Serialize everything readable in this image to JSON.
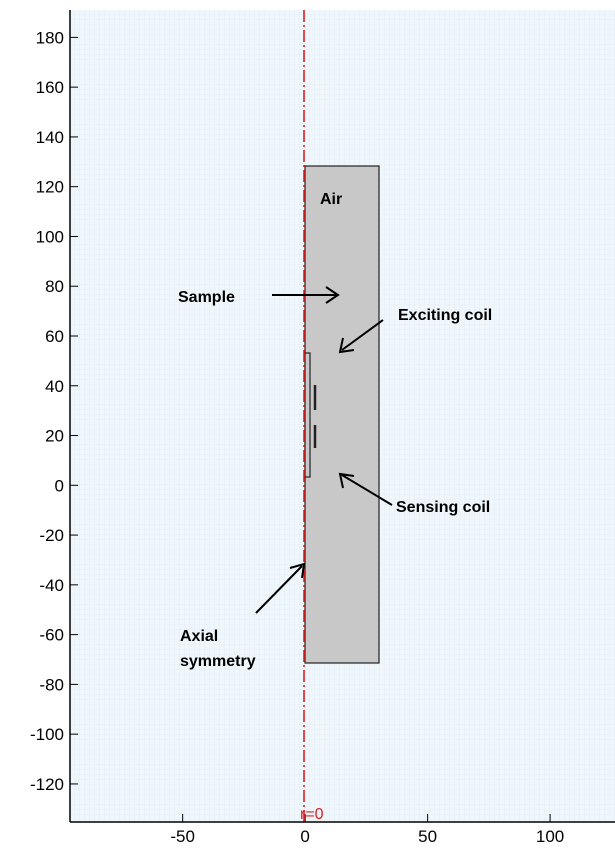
{
  "axes": {
    "xlim": [
      -96,
      126.5
    ],
    "ylim": [
      -135.3,
      191
    ],
    "xticks": [
      -50,
      0,
      50,
      100
    ],
    "yticks": [
      -120,
      -100,
      -80,
      -60,
      -40,
      -20,
      0,
      20,
      40,
      60,
      80,
      100,
      120,
      140,
      160,
      180
    ]
  },
  "labels": {
    "air": "Air",
    "sample": "Sample",
    "exciting_coil": "Exciting coil",
    "sensing_coil": "Sensing coil",
    "axial": "Axial",
    "symmetry": "symmetry",
    "axis_name": "r=0"
  }
}
